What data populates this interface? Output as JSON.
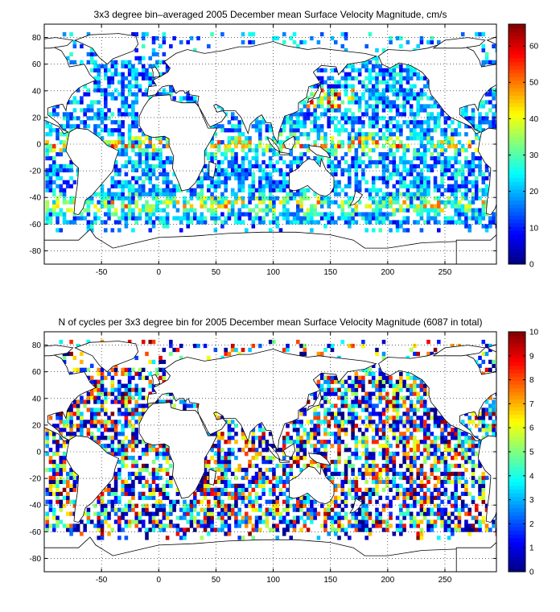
{
  "chart_data": [
    {
      "type": "heatmap",
      "title": "3x3 degree bin–averaged 2005 December mean Surface Velocity Magnitude, cm/s",
      "xlabel": "",
      "ylabel": "",
      "xlim": [
        -100,
        295
      ],
      "ylim": [
        -90,
        90
      ],
      "xticks": [
        -50,
        0,
        50,
        100,
        150,
        200,
        250
      ],
      "yticks": [
        80,
        60,
        40,
        20,
        0,
        -20,
        -40,
        -60,
        -80
      ],
      "grid": true,
      "bin_size_deg": 3,
      "colorbar": {
        "min": 0,
        "max": 66,
        "ticks": [
          0,
          10,
          20,
          30,
          40,
          50,
          60
        ],
        "colormap": "jet"
      },
      "seed": 11
    },
    {
      "type": "heatmap",
      "title": "N of cycles per 3x3 degree bin for 2005 December mean Surface Velocity Magnitude (6087 in total)",
      "xlabel": "",
      "ylabel": "",
      "xlim": [
        -100,
        295
      ],
      "ylim": [
        -90,
        90
      ],
      "xticks": [
        -50,
        0,
        50,
        100,
        150,
        200,
        250
      ],
      "yticks": [
        80,
        60,
        40,
        20,
        0,
        -20,
        -40,
        -60,
        -80
      ],
      "grid": true,
      "bin_size_deg": 3,
      "colorbar": {
        "min": 0,
        "max": 10,
        "ticks": [
          0,
          1,
          2,
          3,
          4,
          5,
          6,
          7,
          8,
          9,
          10
        ],
        "colormap": "jet"
      },
      "seed": 29
    }
  ]
}
